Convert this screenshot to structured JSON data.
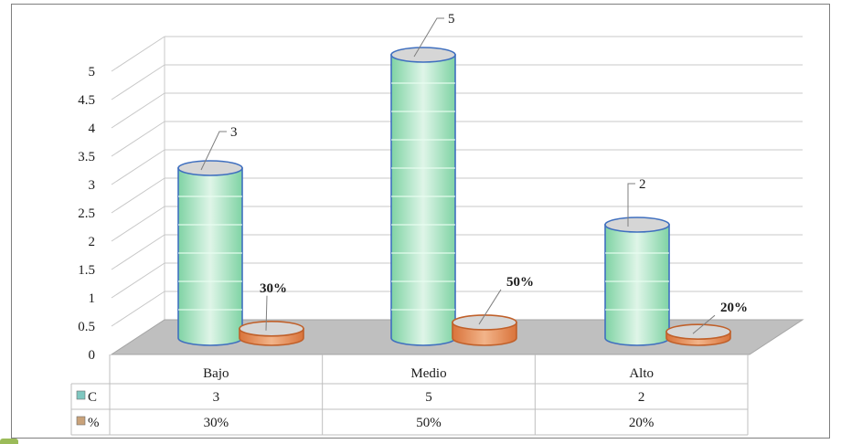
{
  "chart_data": {
    "type": "bar",
    "style": "3d-cylinder",
    "categories": [
      "Bajo",
      "Medio",
      "Alto"
    ],
    "series": [
      {
        "name": "C",
        "values": [
          3,
          5,
          2
        ],
        "labels": [
          "3",
          "5",
          "2"
        ],
        "color": "#b7e4c7",
        "edge": "#3f6fbf"
      },
      {
        "name": "%",
        "values": [
          0.3,
          0.5,
          0.2
        ],
        "labels": [
          "30%",
          "50%",
          "20%"
        ],
        "color": "#d9824a",
        "edge": "#c0602a"
      }
    ],
    "yticks": [
      "0",
      "0.5",
      "1",
      "1.5",
      "2",
      "2.5",
      "3",
      "3.5",
      "4",
      "4.5",
      "5"
    ],
    "ylim": [
      0,
      5
    ],
    "grid": true,
    "legend": "data-table",
    "table": {
      "header": [
        "Bajo",
        "Medio",
        "Alto"
      ],
      "rows": [
        {
          "key": "C",
          "cells": [
            "3",
            "5",
            "2"
          ]
        },
        {
          "key": "%",
          "cells": [
            "30%",
            "50%",
            "20%"
          ]
        }
      ]
    }
  }
}
